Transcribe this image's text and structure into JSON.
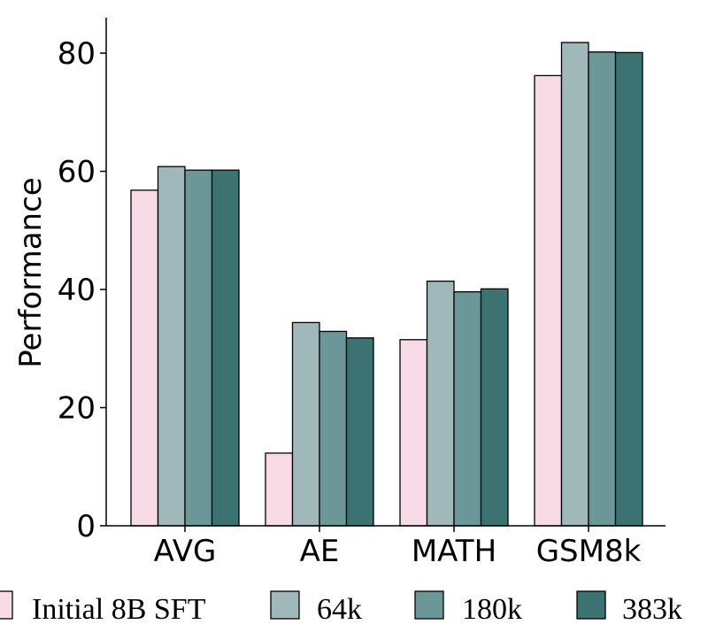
{
  "chart_data": {
    "type": "bar",
    "categories": [
      "AVG",
      "AE",
      "MATH",
      "GSM8k"
    ],
    "series": [
      {
        "name": "Initial 8B SFT",
        "values": [
          56.8,
          12.3,
          31.5,
          76.2
        ],
        "color": "#f9dbe8"
      },
      {
        "name": "64k",
        "values": [
          60.8,
          34.4,
          41.4,
          81.8
        ],
        "color": "#a0b8b9"
      },
      {
        "name": "180k",
        "values": [
          60.2,
          32.9,
          39.6,
          80.2
        ],
        "color": "#6b9798"
      },
      {
        "name": "383k",
        "values": [
          60.2,
          31.8,
          40.1,
          80.1
        ],
        "color": "#3d7272"
      }
    ],
    "ylabel": "Performance",
    "xlabel": "",
    "ylim": [
      0,
      86
    ],
    "yticks": [
      "0",
      "20",
      "40",
      "60",
      "80"
    ],
    "grid": false,
    "legend_position": "bottom"
  }
}
